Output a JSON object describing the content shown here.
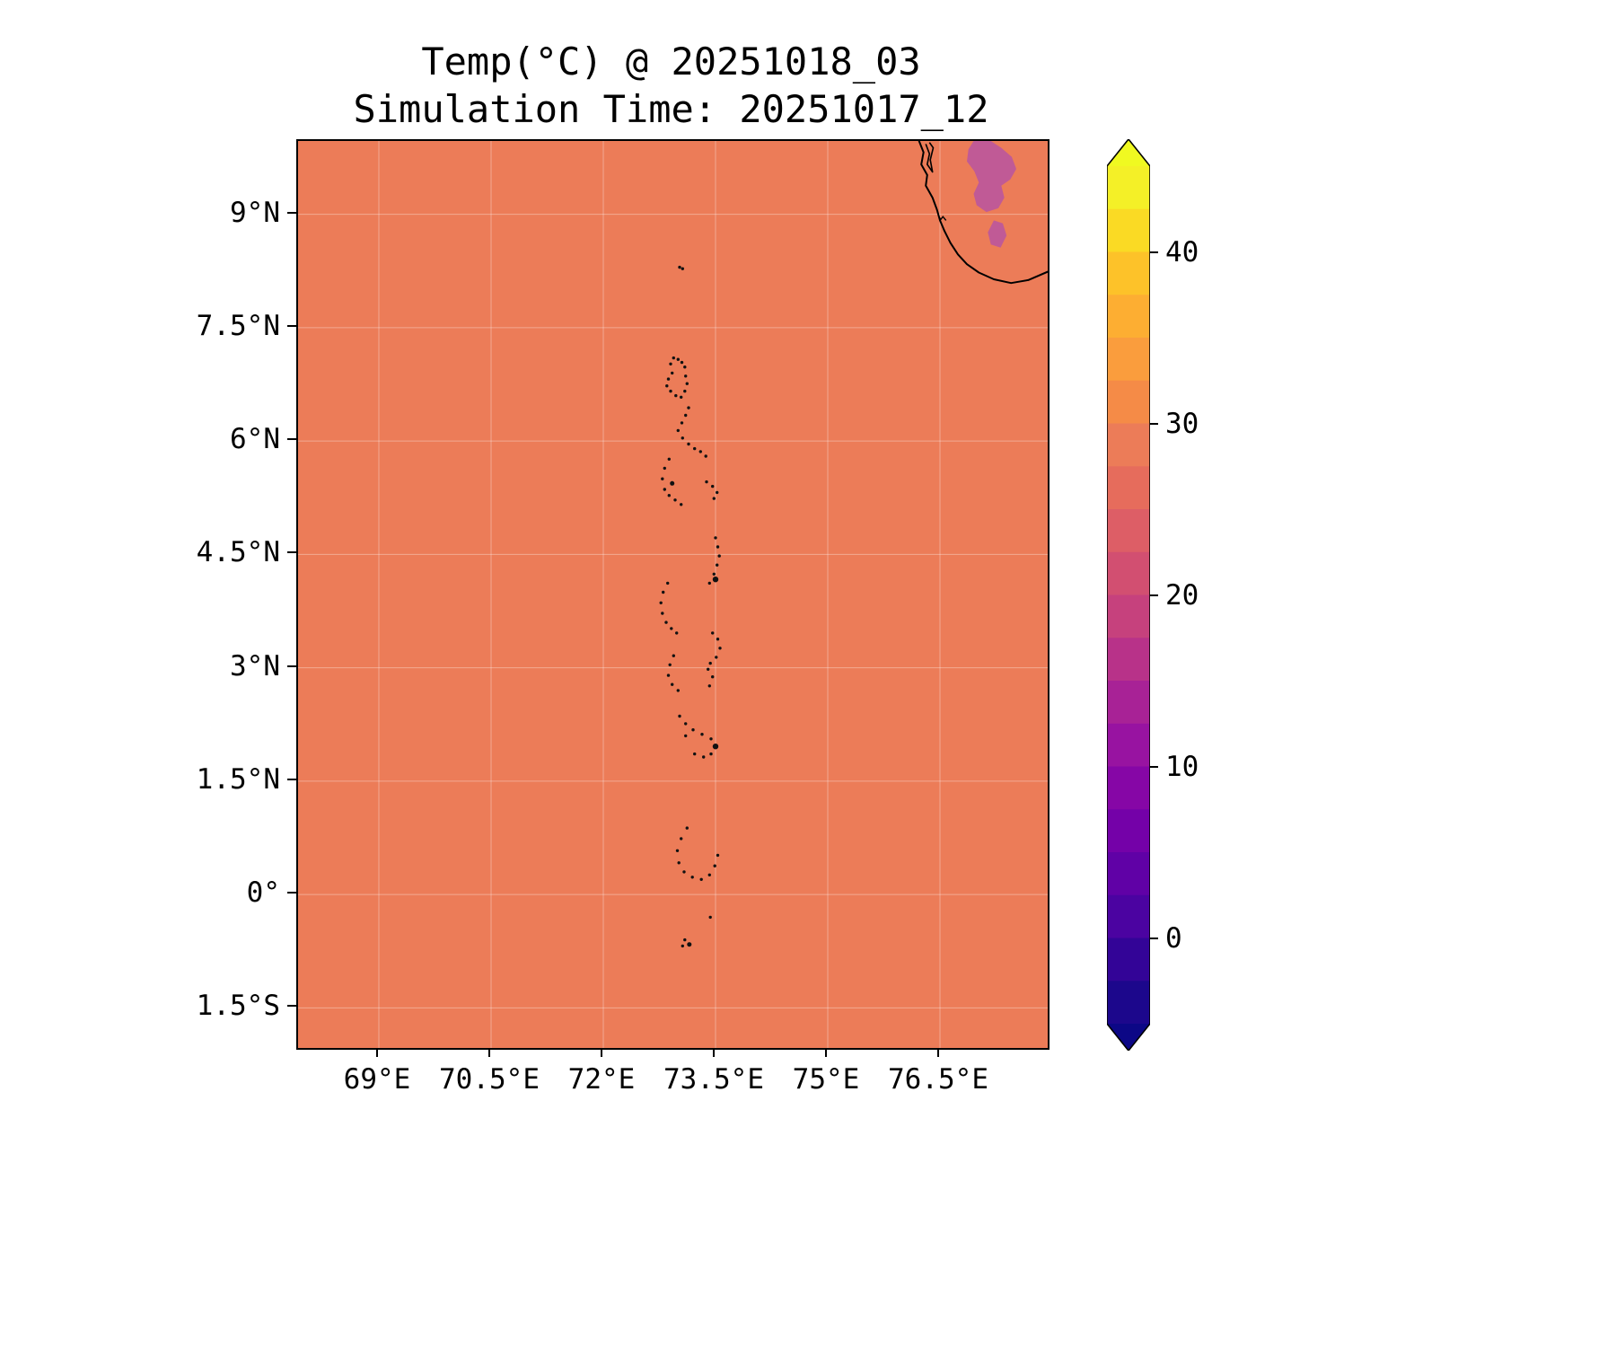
{
  "figure": {
    "title_line1": "Temp(°C) @ 20251018_03",
    "title_line2": "Simulation Time: 20251017_12"
  },
  "chart_data": {
    "type": "heatmap",
    "title": "Temp(°C) @ 20251018_03",
    "subtitle": "Simulation Time: 20251017_12",
    "variable": "Temperature (°C)",
    "valid_time": "20251018_03",
    "simulation_time": "20251017_12",
    "x_tick_labels": [
      "69°E",
      "70.5°E",
      "72°E",
      "73.5°E",
      "75°E",
      "76.5°E"
    ],
    "x_ticks_deg": [
      69,
      70.5,
      72,
      73.5,
      75,
      76.5
    ],
    "y_tick_labels": [
      "9°N",
      "7.5°N",
      "6°N",
      "4.5°N",
      "3°N",
      "1.5°N",
      "0°",
      "1.5°S"
    ],
    "y_ticks_deg": [
      9,
      7.5,
      6,
      4.5,
      3,
      1.5,
      0,
      -1.5
    ],
    "extent": {
      "lon_min": 67.92,
      "lon_max": 77.94,
      "lat_min": -2.03,
      "lat_max": 9.97
    },
    "grid": true,
    "sea_value_c": 28.5,
    "sea_color": "#ec7c58",
    "land_patch_value_c": 21.0,
    "land_patch_color": "#c05a96",
    "coastline_color": "#000000",
    "island_color": "#111111",
    "gridline_color": "rgba(255,255,255,0.35)",
    "colorbar": {
      "orientation": "vertical",
      "ticks": [
        40,
        30,
        20,
        10,
        0
      ],
      "tick_labels": [
        "40",
        "30",
        "20",
        "10",
        "0"
      ],
      "vmin": -5,
      "vmax": 45,
      "band_step": 2.5,
      "band_colors_low_to_high": [
        "#1c078c",
        "#330497",
        "#4b03a1",
        "#6001a6",
        "#7401a8",
        "#8606a6",
        "#9813a1",
        "#a82296",
        "#b83289",
        "#c6417d",
        "#d24f71",
        "#dd5e66",
        "#e66c5c",
        "#ec7c58",
        "#f58b47",
        "#fa9d3d",
        "#fdae32",
        "#fdc229",
        "#fada24",
        "#f4f027"
      ],
      "extend_low_color": "#0c0786",
      "extend_high_color": "#f0f921"
    },
    "coastline_lonlat": [
      [
        76.22,
        9.97
      ],
      [
        76.28,
        9.82
      ],
      [
        76.25,
        9.66
      ],
      [
        76.33,
        9.52
      ],
      [
        76.31,
        9.38
      ],
      [
        76.4,
        9.22
      ],
      [
        76.46,
        9.06
      ],
      [
        76.5,
        8.92
      ],
      [
        76.56,
        8.78
      ],
      [
        76.64,
        8.62
      ],
      [
        76.74,
        8.47
      ],
      [
        76.86,
        8.34
      ],
      [
        77.02,
        8.23
      ],
      [
        77.22,
        8.14
      ],
      [
        77.45,
        8.09
      ],
      [
        77.68,
        8.13
      ],
      [
        77.94,
        8.24
      ]
    ],
    "lake_lonlat": [
      [
        76.31,
        9.93
      ],
      [
        76.36,
        9.8
      ],
      [
        76.33,
        9.66
      ],
      [
        76.4,
        9.56
      ],
      [
        76.37,
        9.72
      ],
      [
        76.41,
        9.88
      ],
      [
        76.36,
        9.95
      ]
    ],
    "coast_marks_lonlat": [
      [
        76.48,
        8.98
      ],
      [
        76.51,
        8.93
      ],
      [
        76.54,
        8.97
      ],
      [
        76.58,
        8.92
      ]
    ],
    "land_patches_lonlat": [
      [
        [
          76.95,
          9.97
        ],
        [
          77.18,
          9.97
        ],
        [
          77.32,
          9.88
        ],
        [
          77.46,
          9.76
        ],
        [
          77.52,
          9.6
        ],
        [
          77.44,
          9.46
        ],
        [
          77.32,
          9.38
        ],
        [
          77.36,
          9.22
        ],
        [
          77.28,
          9.08
        ],
        [
          77.12,
          9.03
        ],
        [
          76.99,
          9.12
        ],
        [
          76.95,
          9.27
        ],
        [
          77.02,
          9.42
        ],
        [
          76.96,
          9.57
        ],
        [
          76.86,
          9.7
        ],
        [
          76.88,
          9.86
        ]
      ],
      [
        [
          77.22,
          8.92
        ],
        [
          77.34,
          8.88
        ],
        [
          77.39,
          8.72
        ],
        [
          77.31,
          8.56
        ],
        [
          77.18,
          8.6
        ],
        [
          77.14,
          8.76
        ]
      ]
    ],
    "islands_lonlat": [
      [
        73.02,
        8.3
      ],
      [
        73.06,
        8.28
      ],
      [
        72.94,
        7.1
      ],
      [
        73.0,
        7.08
      ],
      [
        73.05,
        7.04
      ],
      [
        72.9,
        7.02
      ],
      [
        73.09,
        6.98
      ],
      [
        72.92,
        6.9
      ],
      [
        72.87,
        6.82
      ],
      [
        72.85,
        6.73
      ],
      [
        72.9,
        6.66
      ],
      [
        72.97,
        6.6
      ],
      [
        73.04,
        6.58
      ],
      [
        73.09,
        6.66
      ],
      [
        73.12,
        6.76
      ],
      [
        73.1,
        6.86
      ],
      [
        73.14,
        6.44
      ],
      [
        73.1,
        6.34
      ],
      [
        73.05,
        6.24
      ],
      [
        73.0,
        6.14
      ],
      [
        73.06,
        6.04
      ],
      [
        73.14,
        5.96
      ],
      [
        73.22,
        5.9
      ],
      [
        73.3,
        5.86
      ],
      [
        73.37,
        5.8
      ],
      [
        72.88,
        5.76
      ],
      [
        72.82,
        5.64
      ],
      [
        72.79,
        5.5
      ],
      [
        72.82,
        5.36
      ],
      [
        72.88,
        5.28
      ],
      [
        72.96,
        5.22
      ],
      [
        73.04,
        5.16
      ],
      [
        72.92,
        5.44,
        2.5
      ],
      [
        73.38,
        5.46
      ],
      [
        73.46,
        5.4
      ],
      [
        73.52,
        5.32
      ],
      [
        73.48,
        5.24
      ],
      [
        73.5,
        4.72
      ],
      [
        73.53,
        4.6
      ],
      [
        73.55,
        4.48
      ],
      [
        73.52,
        4.36
      ],
      [
        73.48,
        4.24
      ],
      [
        73.5,
        4.17,
        3.2
      ],
      [
        73.42,
        4.12
      ],
      [
        72.86,
        4.12
      ],
      [
        72.8,
        4.0
      ],
      [
        72.77,
        3.86
      ],
      [
        72.79,
        3.72
      ],
      [
        72.84,
        3.6
      ],
      [
        72.91,
        3.52
      ],
      [
        72.98,
        3.46
      ],
      [
        73.46,
        3.46
      ],
      [
        73.53,
        3.38
      ],
      [
        73.56,
        3.26
      ],
      [
        73.51,
        3.14
      ],
      [
        73.43,
        3.06
      ],
      [
        72.94,
        3.16
      ],
      [
        72.89,
        3.04
      ],
      [
        72.87,
        2.9
      ],
      [
        72.92,
        2.78
      ],
      [
        73.0,
        2.7
      ],
      [
        73.4,
        2.98
      ],
      [
        73.46,
        2.88
      ],
      [
        73.42,
        2.76
      ],
      [
        73.02,
        2.36
      ],
      [
        73.1,
        2.26
      ],
      [
        73.2,
        2.18
      ],
      [
        73.32,
        2.12
      ],
      [
        73.1,
        2.1
      ],
      [
        73.44,
        2.06
      ],
      [
        73.5,
        1.96,
        3.2
      ],
      [
        73.44,
        1.86
      ],
      [
        73.34,
        1.82
      ],
      [
        73.22,
        1.86
      ],
      [
        73.12,
        0.88
      ],
      [
        73.04,
        0.74
      ],
      [
        72.99,
        0.58
      ],
      [
        73.01,
        0.42
      ],
      [
        73.08,
        0.3
      ],
      [
        73.19,
        0.23
      ],
      [
        73.31,
        0.2
      ],
      [
        73.42,
        0.26
      ],
      [
        73.49,
        0.38
      ],
      [
        73.53,
        0.52
      ],
      [
        73.43,
        -0.3
      ],
      [
        73.09,
        -0.6
      ],
      [
        73.15,
        -0.66,
        2.5
      ],
      [
        73.06,
        -0.68
      ]
    ]
  }
}
